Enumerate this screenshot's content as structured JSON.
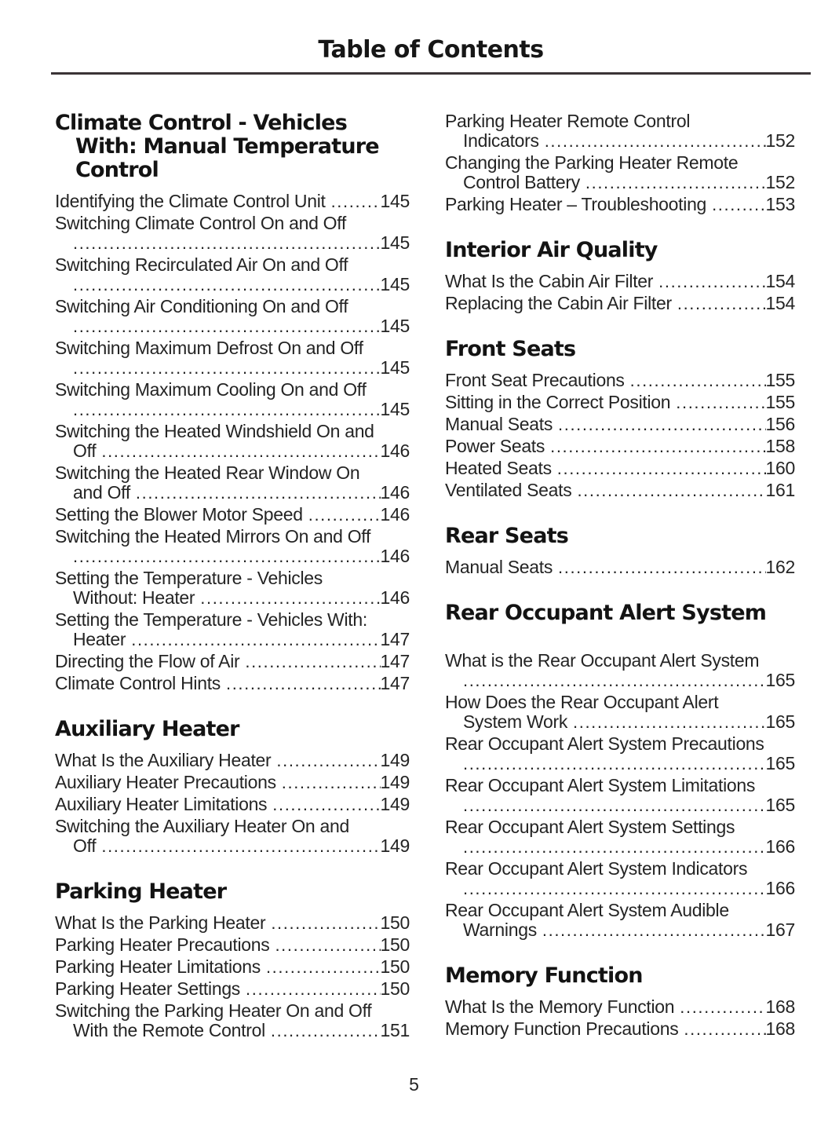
{
  "document": {
    "title": "Table of Contents",
    "footer_page_number": "5"
  },
  "colors": {
    "background": "#ffffff",
    "body_text": "#242424",
    "heading_text": "#131313",
    "divider_rule": "#3a3436"
  },
  "columns": [
    {
      "sections": [
        {
          "heading_lines": [
            "Climate Control - Vehicles",
            "With: Manual Temperature",
            "Control"
          ],
          "entries": [
            {
              "text": "Identifying the Climate Control Unit",
              "page": "145"
            },
            {
              "pre": [
                "Switching Climate Control On and Off"
              ],
              "text": "",
              "page": "145"
            },
            {
              "pre": [
                "Switching Recirculated Air On and Off"
              ],
              "text": "",
              "page": "145"
            },
            {
              "pre": [
                "Switching Air Conditioning On and Off"
              ],
              "text": "",
              "page": "145"
            },
            {
              "pre": [
                "Switching Maximum Defrost On and Off"
              ],
              "text": "",
              "page": "145"
            },
            {
              "pre": [
                "Switching Maximum Cooling On and Off"
              ],
              "text": "",
              "page": "145"
            },
            {
              "pre": [
                "Switching the Heated Windshield On and"
              ],
              "text": "Off",
              "page": "146"
            },
            {
              "pre": [
                "Switching the Heated Rear Window On"
              ],
              "text": "and Off",
              "page": "146"
            },
            {
              "text": "Setting the Blower Motor Speed",
              "page": "146"
            },
            {
              "pre": [
                "Switching the Heated Mirrors On and Off"
              ],
              "text": "",
              "page": "146"
            },
            {
              "pre": [
                "Setting the Temperature - Vehicles"
              ],
              "text": "Without: Heater",
              "page": "146"
            },
            {
              "pre": [
                "Setting the Temperature - Vehicles With:"
              ],
              "text": "Heater",
              "page": "147"
            },
            {
              "text": "Directing the Flow of Air",
              "page": "147"
            },
            {
              "text": "Climate Control Hints",
              "page": "147"
            }
          ]
        },
        {
          "heading_lines": [
            "Auxiliary Heater"
          ],
          "entries": [
            {
              "text": "What Is the Auxiliary Heater",
              "page": "149"
            },
            {
              "text": "Auxiliary Heater Precautions",
              "page": "149"
            },
            {
              "text": "Auxiliary Heater Limitations",
              "page": "149"
            },
            {
              "pre": [
                "Switching the Auxiliary Heater On and"
              ],
              "text": "Off",
              "page": "149"
            }
          ]
        },
        {
          "heading_lines": [
            "Parking Heater"
          ],
          "entries": [
            {
              "text": "What Is the Parking Heater",
              "page": "150"
            },
            {
              "text": "Parking Heater Precautions",
              "page": "150"
            },
            {
              "text": "Parking Heater Limitations",
              "page": "150"
            },
            {
              "text": "Parking Heater Settings",
              "page": "150"
            },
            {
              "pre": [
                "Switching the Parking Heater On and Off"
              ],
              "text": "With the Remote Control",
              "page": "151"
            }
          ]
        }
      ]
    },
    {
      "sections": [
        {
          "heading_lines": null,
          "entries": [
            {
              "pre": [
                "Parking Heater Remote Control"
              ],
              "text": "Indicators",
              "page": "152"
            },
            {
              "pre": [
                "Changing the Parking Heater Remote"
              ],
              "text": "Control Battery",
              "page": "152"
            },
            {
              "text": "Parking Heater – Troubleshooting",
              "page": "153"
            }
          ]
        },
        {
          "heading_lines": [
            "Interior Air Quality"
          ],
          "entries": [
            {
              "text": "What Is the Cabin Air Filter",
              "page": "154"
            },
            {
              "text": "Replacing the Cabin Air Filter",
              "page": "154"
            }
          ]
        },
        {
          "heading_lines": [
            "Front Seats"
          ],
          "entries": [
            {
              "text": "Front Seat Precautions",
              "page": "155"
            },
            {
              "text": "Sitting in the Correct Position",
              "page": "155"
            },
            {
              "text": "Manual Seats",
              "page": "156"
            },
            {
              "text": "Power Seats",
              "page": "158"
            },
            {
              "text": "Heated Seats",
              "page": "160"
            },
            {
              "text": "Ventilated Seats",
              "page": "161"
            }
          ]
        },
        {
          "heading_lines": [
            "Rear Seats"
          ],
          "entries": [
            {
              "text": "Manual Seats",
              "page": "162"
            }
          ]
        },
        {
          "heading_lines": [
            "Rear Occupant Alert System"
          ],
          "extra_gap_before_entries": true,
          "entries": [
            {
              "pre": [
                "What is the Rear Occupant Alert System"
              ],
              "text": "",
              "page": "165"
            },
            {
              "pre": [
                "How Does the Rear Occupant Alert"
              ],
              "text": "System Work",
              "page": "165"
            },
            {
              "pre": [
                "Rear Occupant Alert System Precautions"
              ],
              "text": "",
              "page": "165"
            },
            {
              "pre": [
                "Rear Occupant Alert System Limitations"
              ],
              "text": "",
              "page": "165"
            },
            {
              "pre": [
                "Rear Occupant Alert System Settings"
              ],
              "text": "",
              "page": "166"
            },
            {
              "pre": [
                "Rear Occupant Alert System Indicators"
              ],
              "text": "",
              "page": "166"
            },
            {
              "pre": [
                "Rear Occupant Alert System Audible"
              ],
              "text": "Warnings",
              "page": "167"
            }
          ]
        },
        {
          "heading_lines": [
            "Memory Function"
          ],
          "entries": [
            {
              "text": "What Is the Memory Function",
              "page": "168"
            },
            {
              "text": "Memory Function Precautions",
              "page": "168"
            }
          ]
        }
      ]
    }
  ]
}
